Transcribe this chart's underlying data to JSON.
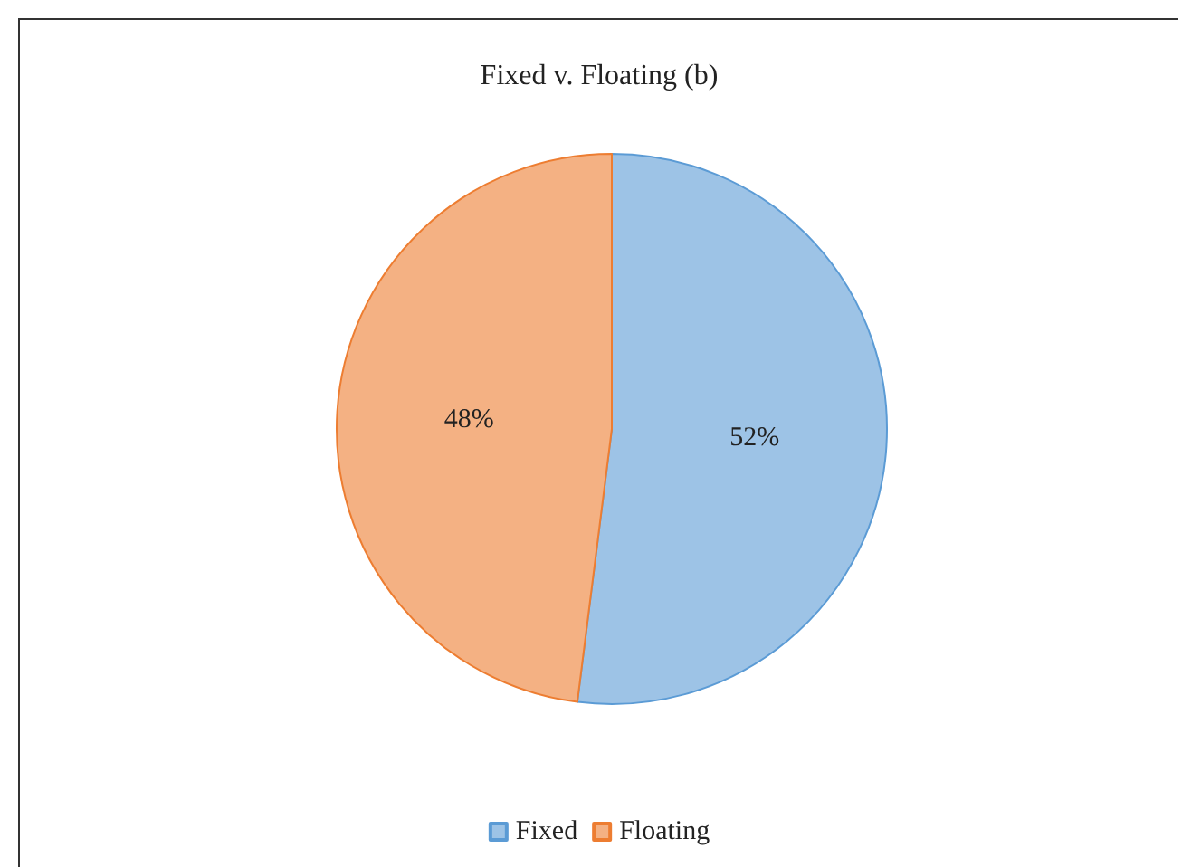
{
  "chart_data": {
    "type": "pie",
    "title": "Fixed v. Floating (b)",
    "categories": [
      "Fixed",
      "Floating"
    ],
    "values": [
      52,
      48
    ],
    "value_labels": [
      "52%",
      "48%"
    ],
    "colors": [
      "#9dc3e6",
      "#f4b183"
    ],
    "legend": "bottom"
  }
}
